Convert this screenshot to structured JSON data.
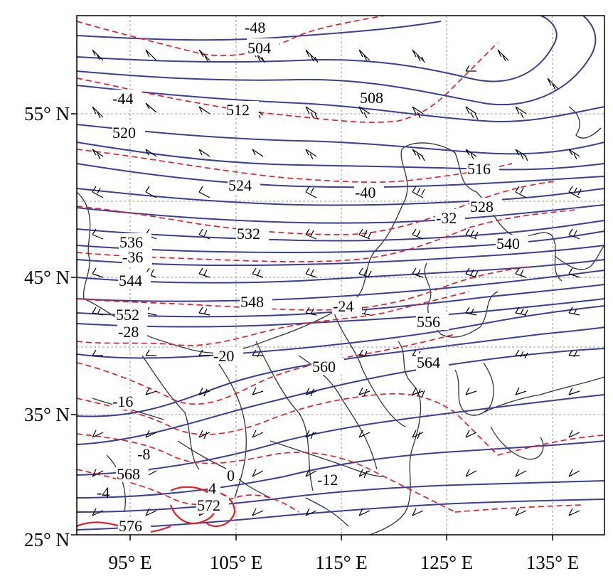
{
  "map": {
    "axes": {
      "lat_labels": [
        "25° N",
        "35° N",
        "45° N",
        "55° N"
      ],
      "lon_labels": [
        "95° E",
        "105° E",
        "115° E",
        "125° E",
        "135° E"
      ]
    },
    "height_contour_labels": [
      "504",
      "508",
      "512",
      "516",
      "520",
      "524",
      "528",
      "532",
      "536",
      "540",
      "544",
      "548",
      "552",
      "556",
      "560",
      "564",
      "568",
      "572",
      "576"
    ],
    "temperature_contour_labels": [
      "-48",
      "-44",
      "-40",
      "-36",
      "-32",
      "-28",
      "-24",
      "-20",
      "-16",
      "-12",
      "-8",
      "-4",
      "0",
      "4"
    ],
    "colors": {
      "height_contour": "#3b3f93",
      "temperature_contour": "#e0202a",
      "border": "#333333",
      "grid": "#9a9a9a",
      "barb": "#000000"
    }
  }
}
